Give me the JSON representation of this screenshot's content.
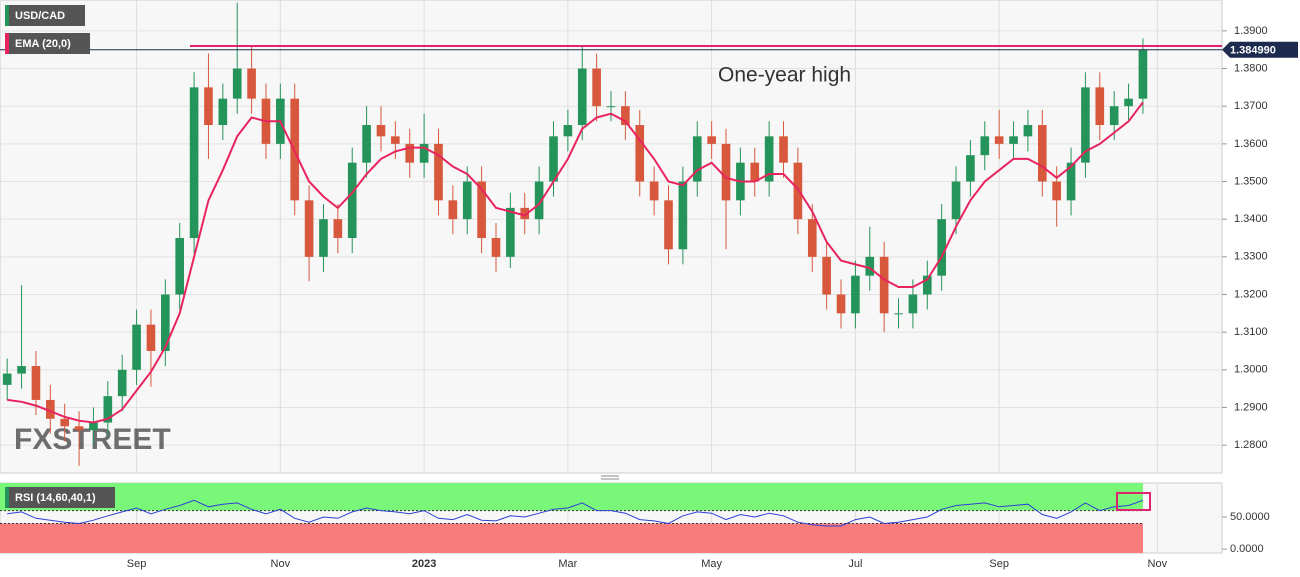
{
  "chart_data": [
    {
      "type": "candlestick",
      "categories": [
        null,
        null,
        null,
        null,
        null,
        null,
        null,
        null,
        null,
        "Sep",
        null,
        null,
        null,
        null,
        null,
        null,
        null,
        null,
        null,
        "Nov",
        null,
        null,
        null,
        null,
        null,
        null,
        null,
        null,
        null,
        "2023",
        null,
        null,
        null,
        null,
        null,
        null,
        null,
        null,
        null,
        "Mar",
        null,
        null,
        null,
        null,
        null,
        null,
        null,
        null,
        null,
        "May",
        null,
        null,
        null,
        null,
        null,
        null,
        null,
        null,
        null,
        "Jul",
        null,
        null,
        null,
        null,
        null,
        null,
        null,
        null,
        null,
        "Sep",
        null,
        null,
        null,
        null,
        null,
        null,
        null,
        null,
        null,
        null,
        "Nov",
        null,
        null,
        null,
        null
      ],
      "series": [
        {
          "name": "USD/CAD",
          "up_color": "#24945a",
          "down_color": "#d7583c",
          "stripe_color": "#24945a",
          "open": [
            1.296,
            1.299,
            1.301,
            1.292,
            1.287,
            1.285,
            1.284,
            1.286,
            1.293,
            1.3,
            1.312,
            1.305,
            1.32,
            1.335,
            1.375,
            1.365,
            1.372,
            1.38,
            1.372,
            1.36,
            1.372,
            1.345,
            1.33,
            1.34,
            1.335,
            1.355,
            1.365,
            1.362,
            1.36,
            1.355,
            1.36,
            1.345,
            1.34,
            1.35,
            1.335,
            1.33,
            1.343,
            1.34,
            1.35,
            1.362,
            1.365,
            1.38,
            1.37,
            1.37,
            1.365,
            1.35,
            1.345,
            1.332,
            1.35,
            1.362,
            1.36,
            1.345,
            1.355,
            1.35,
            1.362,
            1.355,
            1.34,
            1.33,
            1.32,
            1.315,
            1.325,
            1.33,
            1.315,
            1.315,
            1.32,
            1.325,
            1.34,
            1.35,
            1.357,
            1.362,
            1.36,
            1.362,
            1.365,
            1.35,
            1.345,
            1.355,
            1.375,
            1.365,
            1.37,
            1.372,
            null,
            null,
            null,
            null,
            null
          ],
          "high": [
            1.303,
            1.3225,
            1.305,
            1.296,
            1.291,
            1.289,
            1.29,
            1.297,
            1.304,
            1.316,
            1.316,
            1.324,
            1.339,
            1.379,
            1.384,
            1.376,
            1.3975,
            1.386,
            1.376,
            1.376,
            1.376,
            1.349,
            1.344,
            1.344,
            1.359,
            1.37,
            1.37,
            1.366,
            1.364,
            1.368,
            1.364,
            1.349,
            1.354,
            1.354,
            1.339,
            1.347,
            1.347,
            1.354,
            1.366,
            1.369,
            1.386,
            1.384,
            1.374,
            1.374,
            1.369,
            1.354,
            1.349,
            1.354,
            1.366,
            1.366,
            1.364,
            1.359,
            1.359,
            1.366,
            1.366,
            1.359,
            1.344,
            1.334,
            1.324,
            1.329,
            1.338,
            1.334,
            1.319,
            1.324,
            1.329,
            1.344,
            1.354,
            1.361,
            1.366,
            1.369,
            1.366,
            1.369,
            1.369,
            1.354,
            1.359,
            1.379,
            1.379,
            1.374,
            1.376,
            1.388,
            null,
            null,
            null,
            null,
            null
          ],
          "low": [
            1.292,
            1.295,
            1.288,
            1.283,
            1.281,
            1.2745,
            1.28,
            1.282,
            1.289,
            1.296,
            1.2955,
            1.301,
            1.316,
            1.331,
            1.356,
            1.361,
            1.368,
            1.368,
            1.356,
            1.356,
            1.341,
            1.3235,
            1.326,
            1.331,
            1.331,
            1.351,
            1.358,
            1.356,
            1.351,
            1.351,
            1.341,
            1.336,
            1.336,
            1.331,
            1.326,
            1.327,
            1.336,
            1.336,
            1.346,
            1.358,
            1.361,
            1.366,
            1.366,
            1.361,
            1.346,
            1.341,
            1.328,
            1.328,
            1.346,
            1.356,
            1.332,
            1.341,
            1.346,
            1.346,
            1.351,
            1.336,
            1.326,
            1.316,
            1.311,
            1.311,
            1.321,
            1.31,
            1.311,
            1.311,
            1.316,
            1.321,
            1.336,
            1.346,
            1.353,
            1.356,
            1.356,
            1.358,
            1.346,
            1.338,
            1.341,
            1.351,
            1.361,
            1.361,
            1.366,
            1.368,
            null,
            null,
            null,
            null,
            null
          ],
          "close": [
            1.299,
            1.301,
            1.292,
            1.287,
            1.285,
            1.284,
            1.286,
            1.293,
            1.3,
            1.312,
            1.305,
            1.32,
            1.335,
            1.375,
            1.365,
            1.372,
            1.38,
            1.372,
            1.36,
            1.372,
            1.345,
            1.33,
            1.34,
            1.335,
            1.355,
            1.365,
            1.362,
            1.36,
            1.355,
            1.36,
            1.345,
            1.34,
            1.35,
            1.335,
            1.33,
            1.343,
            1.34,
            1.35,
            1.362,
            1.365,
            1.38,
            1.37,
            1.37,
            1.365,
            1.35,
            1.345,
            1.332,
            1.35,
            1.362,
            1.36,
            1.345,
            1.355,
            1.35,
            1.362,
            1.355,
            1.34,
            1.33,
            1.32,
            1.315,
            1.325,
            1.33,
            1.315,
            1.315,
            1.32,
            1.325,
            1.34,
            1.35,
            1.357,
            1.362,
            1.36,
            1.362,
            1.365,
            1.35,
            1.345,
            1.355,
            1.375,
            1.365,
            1.37,
            1.372,
            1.385,
            null,
            null,
            null,
            null,
            null
          ]
        },
        {
          "name": "EMA (20,0)",
          "type": "line",
          "color": "#e8245f",
          "values": [
            1.292,
            1.2915,
            1.2905,
            1.289,
            1.2875,
            1.2865,
            1.286,
            1.287,
            1.2895,
            1.2945,
            1.2995,
            1.306,
            1.315,
            1.33,
            1.345,
            1.353,
            1.362,
            1.367,
            1.366,
            1.366,
            1.358,
            1.35,
            1.346,
            1.343,
            1.347,
            1.352,
            1.356,
            1.358,
            1.359,
            1.359,
            1.357,
            1.354,
            1.352,
            1.348,
            1.343,
            1.342,
            1.341,
            1.344,
            1.35,
            1.356,
            1.364,
            1.367,
            1.368,
            1.366,
            1.361,
            1.356,
            1.35,
            1.349,
            1.353,
            1.355,
            1.351,
            1.35,
            1.35,
            1.352,
            1.352,
            1.348,
            1.342,
            1.334,
            1.329,
            1.328,
            1.327,
            1.324,
            1.322,
            1.322,
            1.324,
            1.33,
            1.338,
            1.345,
            1.35,
            1.353,
            1.356,
            1.356,
            1.354,
            1.351,
            1.354,
            1.358,
            1.36,
            1.363,
            1.366,
            1.371,
            null,
            null,
            null,
            null,
            null
          ]
        }
      ],
      "ylim": [
        1.2726,
        1.3982
      ],
      "yticks": [
        {
          "value": 1.28,
          "label": "1.2800"
        },
        {
          "value": 1.29,
          "label": "1.2900"
        },
        {
          "value": 1.3,
          "label": "1.3000"
        },
        {
          "value": 1.31,
          "label": "1.3100"
        },
        {
          "value": 1.32,
          "label": "1.3200"
        },
        {
          "value": 1.33,
          "label": "1.3300"
        },
        {
          "value": 1.34,
          "label": "1.3400"
        },
        {
          "value": 1.35,
          "label": "1.3500"
        },
        {
          "value": 1.36,
          "label": "1.3600"
        },
        {
          "value": 1.37,
          "label": "1.3700"
        },
        {
          "value": 1.38,
          "label": "1.3800"
        },
        {
          "value": 1.39,
          "label": "1.3900"
        }
      ],
      "grid": true,
      "price_line": {
        "value": 1.38499,
        "label": "1.384990",
        "color": "#1d2b4f"
      },
      "annotation": {
        "text": "One-year high",
        "value": 1.386,
        "color": "#e0236e"
      },
      "watermark": "FXSTREET"
    },
    {
      "type": "line",
      "series": [
        {
          "name": "RSI (14,60,40,1)",
          "color": "#2d3fd6",
          "stripe_color": "#24945a",
          "values": [
            55,
            58,
            48,
            45,
            42,
            40,
            45,
            52,
            58,
            64,
            55,
            62,
            68,
            76,
            66,
            70,
            72,
            62,
            55,
            62,
            48,
            42,
            50,
            48,
            58,
            64,
            60,
            58,
            55,
            60,
            48,
            46,
            54,
            45,
            44,
            52,
            50,
            56,
            62,
            64,
            72,
            60,
            60,
            56,
            46,
            44,
            40,
            52,
            58,
            56,
            46,
            54,
            50,
            56,
            52,
            42,
            38,
            36,
            36,
            46,
            50,
            40,
            42,
            46,
            50,
            62,
            68,
            70,
            72,
            66,
            68,
            70,
            54,
            48,
            58,
            72,
            60,
            66,
            68,
            76,
            null,
            null,
            null,
            null,
            null
          ]
        }
      ],
      "upper_zone": {
        "value": 60,
        "color": "#79f779"
      },
      "lower_zone": {
        "value": 40,
        "color": "#f97c7c"
      },
      "ylim": [
        -6,
        103
      ],
      "yticks": [
        {
          "value": 0,
          "label": "0.0000"
        },
        {
          "value": 50,
          "label": "50.0000"
        }
      ]
    }
  ]
}
